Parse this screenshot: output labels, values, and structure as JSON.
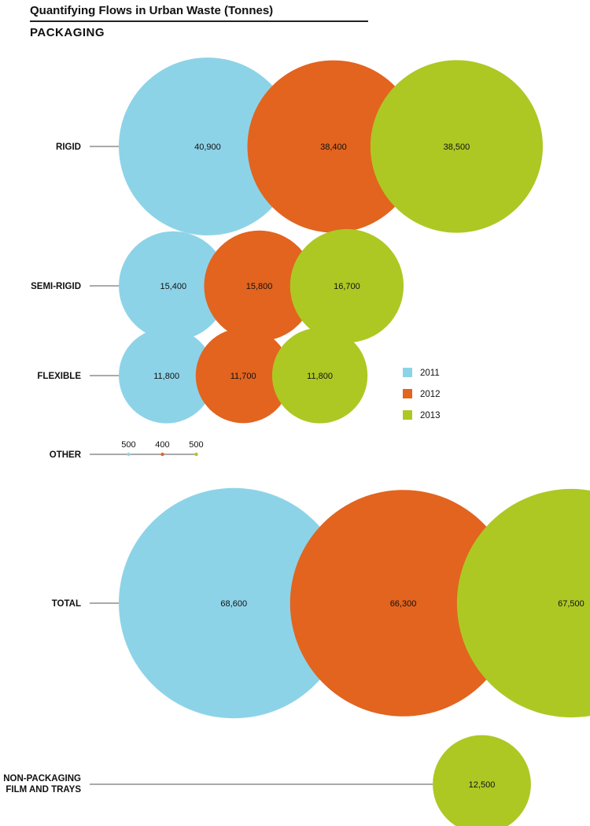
{
  "chart_data": {
    "type": "bubble",
    "title": "Quantifying Flows in Urban Waste (Tonnes)",
    "subtitle": "PACKAGING",
    "years": [
      "2011",
      "2012",
      "2013"
    ],
    "colors": {
      "2011": "#8dd3e8",
      "2012": "#e2641f",
      "2013": "#adc823"
    },
    "legend_position": "right-middle",
    "rows": [
      {
        "category": "RIGID",
        "values": [
          40900,
          38400,
          38500
        ],
        "labels": [
          "40,900",
          "38,400",
          "38,500"
        ]
      },
      {
        "category": "SEMI-RIGID",
        "values": [
          15400,
          15800,
          16700
        ],
        "labels": [
          "15,400",
          "15,800",
          "16,700"
        ]
      },
      {
        "category": "FLEXIBLE",
        "values": [
          11800,
          11700,
          11800
        ],
        "labels": [
          "11,800",
          "11,700",
          "11,800"
        ]
      },
      {
        "category": "OTHER",
        "values": [
          500,
          400,
          500
        ],
        "labels": [
          "500",
          "400",
          "500"
        ]
      },
      {
        "category": "TOTAL",
        "values": [
          68600,
          66300,
          67500
        ],
        "labels": [
          "68,600",
          "66,300",
          "67,500"
        ]
      }
    ],
    "extra": {
      "category": "NON-PACKAGING FILM AND TRAYS",
      "category_lines": [
        "NON-PACKAGING",
        "FILM AND TRAYS"
      ],
      "year": "2013",
      "value": 12500,
      "label": "12,500"
    }
  }
}
